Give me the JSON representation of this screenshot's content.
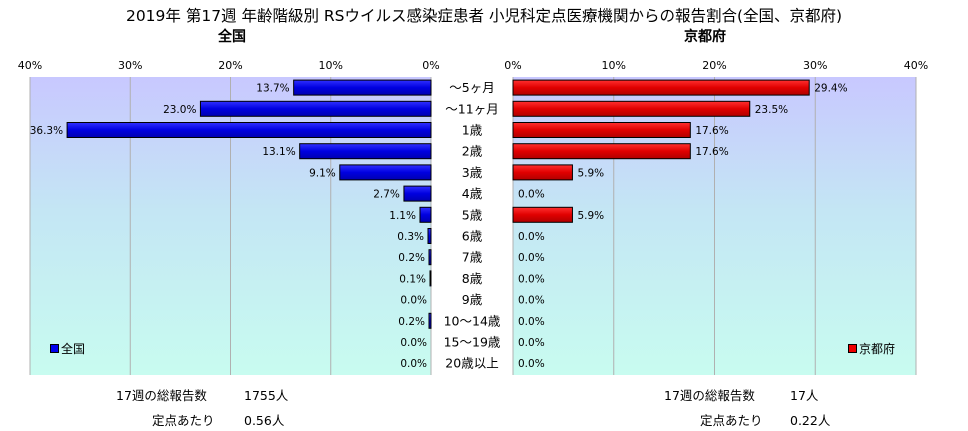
{
  "title": "2019年 第17週 年齢階級別 RSウイルス感染症患者 小児科定点医療機関からの報告割合(全国、京都府)",
  "chart_data": {
    "type": "bar",
    "categories": [
      "〜5ヶ月",
      "〜11ヶ月",
      "1歳",
      "2歳",
      "3歳",
      "4歳",
      "5歳",
      "6歳",
      "7歳",
      "8歳",
      "9歳",
      "10〜14歳",
      "15〜19歳",
      "20歳以上"
    ],
    "xlim": [
      0,
      40
    ],
    "ticks": [
      "0%",
      "10%",
      "20%",
      "30%",
      "40%"
    ],
    "series": [
      {
        "name": "全国",
        "title": "全国",
        "color": "#0000ee",
        "side": "left",
        "values": [
          13.7,
          23.0,
          36.3,
          13.1,
          9.1,
          2.7,
          1.1,
          0.3,
          0.2,
          0.1,
          0.0,
          0.2,
          0.0,
          0.0
        ],
        "labels": [
          "13.7%",
          "23.0%",
          "36.3%",
          "13.1%",
          "9.1%",
          "2.7%",
          "1.1%",
          "0.3%",
          "0.2%",
          "0.1%",
          "0.0%",
          "0.2%",
          "0.0%",
          "0.0%"
        ]
      },
      {
        "name": "京都府",
        "title": "京都府",
        "color": "#ee0000",
        "side": "right",
        "values": [
          29.4,
          23.5,
          17.6,
          17.6,
          5.9,
          0.0,
          5.9,
          0.0,
          0.0,
          0.0,
          0.0,
          0.0,
          0.0,
          0.0
        ],
        "labels": [
          "29.4%",
          "23.5%",
          "17.6%",
          "17.6%",
          "5.9%",
          "0.0%",
          "5.9%",
          "0.0%",
          "0.0%",
          "0.0%",
          "0.0%",
          "0.0%",
          "0.0%",
          "0.0%"
        ]
      }
    ],
    "grid": true,
    "legend_placement": "bottom-left / bottom-right"
  },
  "footer": {
    "national_total_label": "17週の総報告数",
    "national_total_value": "1755人",
    "national_per_label": "定点あたり",
    "national_per_value": "0.56人",
    "kyoto_total_label": "17週の総報告数",
    "kyoto_total_value": "17人",
    "kyoto_per_label": "定点あたり",
    "kyoto_per_value": "0.22人"
  }
}
